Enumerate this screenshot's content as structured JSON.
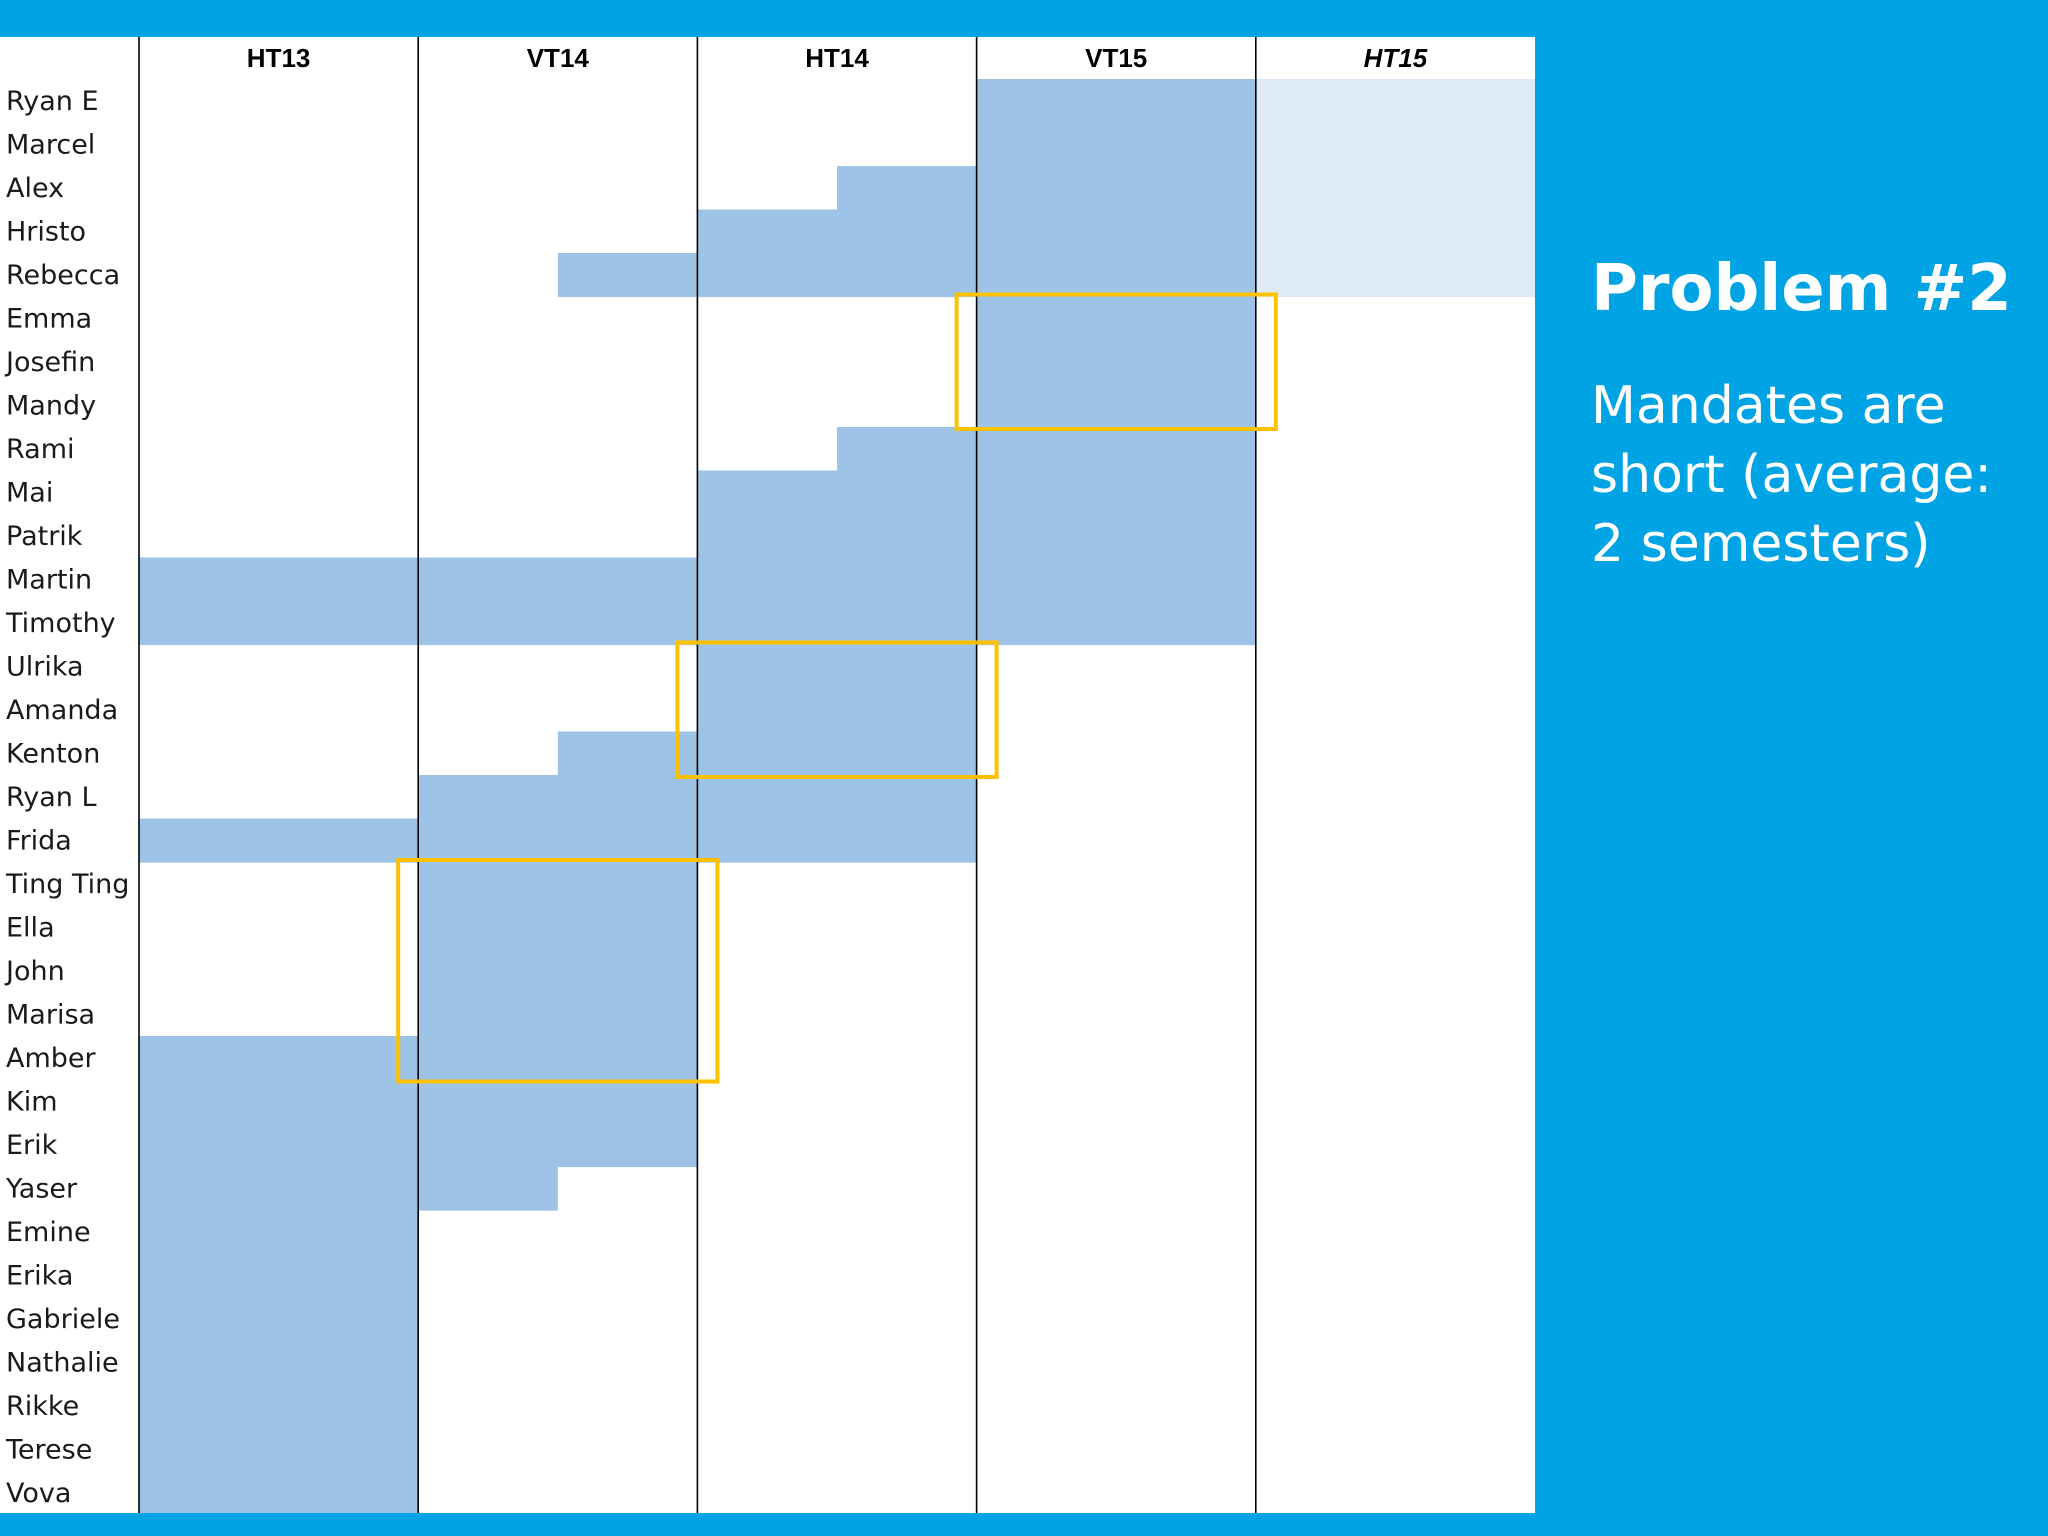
{
  "slide": {
    "title": "Problem #2",
    "body": "Mandates are short (average: 2 semesters)"
  },
  "chart_data": {
    "type": "timeline",
    "semesters": [
      "HT13",
      "VT14",
      "HT14",
      "VT15",
      "HT15"
    ],
    "tentative_semesters": [
      "HT15"
    ],
    "people": [
      "Ryan E",
      "Marcel",
      "Alex",
      "Hristo",
      "Rebecca",
      "Emma",
      "Josefin",
      "Mandy",
      "Rami",
      "Mai",
      "Patrik",
      "Martin",
      "Timothy",
      "Ulrika",
      "Amanda",
      "Kenton",
      "Ryan L",
      "Frida",
      "Ting Ting",
      "Ella",
      "John",
      "Marisa",
      "Amber",
      "Kim",
      "Erik",
      "Yaser",
      "Emine",
      "Erika",
      "Gabriele",
      "Nathalie",
      "Rikke",
      "Terese",
      "Vova"
    ],
    "mandates": [
      {
        "person": "Ryan E",
        "start": 3,
        "end": 5,
        "tentative_from": 4
      },
      {
        "person": "Marcel",
        "start": 3,
        "end": 5,
        "tentative_from": 4
      },
      {
        "person": "Alex",
        "start": 2.5,
        "end": 5,
        "tentative_from": 4
      },
      {
        "person": "Hristo",
        "start": 2,
        "end": 5,
        "tentative_from": 4
      },
      {
        "person": "Rebecca",
        "start": 1.5,
        "end": 5,
        "tentative_from": 4
      },
      {
        "person": "Emma",
        "start": 3,
        "end": 4
      },
      {
        "person": "Josefin",
        "start": 3,
        "end": 4
      },
      {
        "person": "Mandy",
        "start": 3,
        "end": 4
      },
      {
        "person": "Rami",
        "start": 2.5,
        "end": 4
      },
      {
        "person": "Mai",
        "start": 2,
        "end": 4
      },
      {
        "person": "Patrik",
        "start": 2,
        "end": 4
      },
      {
        "person": "Martin",
        "start": 0,
        "end": 4
      },
      {
        "person": "Timothy",
        "start": 0,
        "end": 4
      },
      {
        "person": "Ulrika",
        "start": 2,
        "end": 3
      },
      {
        "person": "Amanda",
        "start": 2,
        "end": 3
      },
      {
        "person": "Kenton",
        "start": 1.5,
        "end": 3
      },
      {
        "person": "Ryan L",
        "start": 1,
        "end": 3
      },
      {
        "person": "Frida",
        "start": 0,
        "end": 3
      },
      {
        "person": "Ting Ting",
        "start": 1,
        "end": 2
      },
      {
        "person": "Ella",
        "start": 1,
        "end": 2
      },
      {
        "person": "John",
        "start": 1,
        "end": 2
      },
      {
        "person": "Marisa",
        "start": 1,
        "end": 2
      },
      {
        "person": "Amber",
        "start": 0,
        "end": 2
      },
      {
        "person": "Kim",
        "start": 0,
        "end": 2
      },
      {
        "person": "Erik",
        "start": 0,
        "end": 2
      },
      {
        "person": "Yaser",
        "start": 0,
        "end": 1.5
      },
      {
        "person": "Emine",
        "start": 0,
        "end": 1
      },
      {
        "person": "Erika",
        "start": 0,
        "end": 1
      },
      {
        "person": "Gabriele",
        "start": 0,
        "end": 1
      },
      {
        "person": "Nathalie",
        "start": 0,
        "end": 1
      },
      {
        "person": "Rikke",
        "start": 0,
        "end": 1
      },
      {
        "person": "Terese",
        "start": 0,
        "end": 1
      },
      {
        "person": "Vova",
        "start": 0,
        "end": 1
      }
    ],
    "highlights": [
      {
        "from_person": "Emma",
        "to_person": "Mandy",
        "start": 3,
        "end": 4
      },
      {
        "from_person": "Ulrika",
        "to_person": "Kenton",
        "start": 2,
        "end": 3
      },
      {
        "from_person": "Ting Ting",
        "to_person": "Amber",
        "start": 1,
        "end": 2
      }
    ],
    "colors": {
      "bar": "#9dc3e6",
      "bar_tentative": "#deebf7",
      "highlight": "#ffc000",
      "grid": "#000000"
    }
  }
}
